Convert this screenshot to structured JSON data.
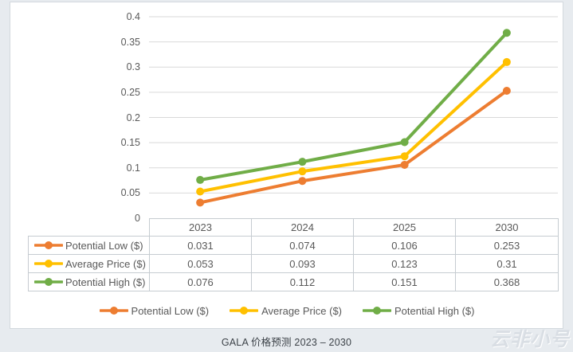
{
  "page": {
    "caption": "GALA 价格预测 2023 – 2030",
    "watermark": "云非小号",
    "background": "#e7ebef",
    "card_background": "#ffffff",
    "gridline_color": "#d9d9d9",
    "table_border_color": "#c6ccd1",
    "text_color": "#595959"
  },
  "chart_data": {
    "type": "line",
    "title": "GALA 价格预测 2023 – 2030",
    "xlabel": "",
    "ylabel": "",
    "categories": [
      "2023",
      "2024",
      "2025",
      "2030"
    ],
    "series": [
      {
        "name": "Potential Low ($)",
        "color": "#ED7D31",
        "values": [
          0.031,
          0.074,
          0.106,
          0.253
        ]
      },
      {
        "name": "Average Price ($)",
        "color": "#FFC000",
        "values": [
          0.053,
          0.093,
          0.123,
          0.31
        ]
      },
      {
        "name": "Potential High ($)",
        "color": "#70AD47",
        "values": [
          0.076,
          0.112,
          0.151,
          0.368
        ]
      }
    ],
    "ylim": [
      0,
      0.4
    ],
    "ytick_step": 0.05,
    "yticks": [
      "0.4",
      "0.35",
      "0.3",
      "0.25",
      "0.2",
      "0.15",
      "0.1",
      "0.05",
      "0"
    ],
    "grid": true,
    "legend_position": "bottom",
    "marker": "circle",
    "data_table_shown": true
  }
}
